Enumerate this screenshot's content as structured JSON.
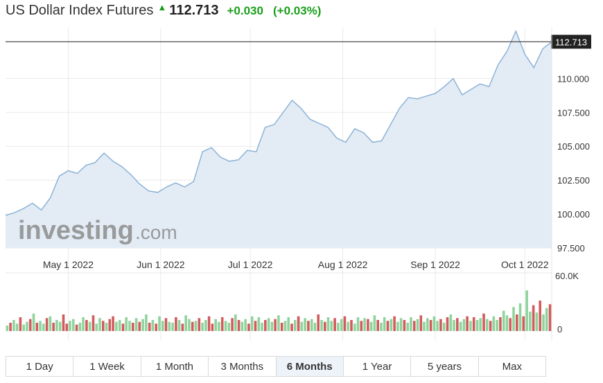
{
  "header": {
    "title": "US Dollar Index Futures",
    "price": "112.713",
    "change": "+0.030",
    "change_pct": "(+0.03%)",
    "arrow_icon": "up-arrow-icon"
  },
  "watermark": {
    "brand": "investing",
    "suffix": ".com"
  },
  "range_buttons": [
    {
      "label": "1 Day"
    },
    {
      "label": "1 Week"
    },
    {
      "label": "1 Month"
    },
    {
      "label": "3 Months"
    },
    {
      "label": "6 Months",
      "active": true
    },
    {
      "label": "1 Year"
    },
    {
      "label": "5 years"
    },
    {
      "label": "Max"
    }
  ],
  "colors": {
    "line": "#8cb2d6",
    "area": "#e3ecf5",
    "up_bar": "#90d39c",
    "down_bar": "#d15c5c",
    "price_line": "#222222",
    "price_tag": "#222222",
    "grid": "#e9e9e9"
  },
  "chart_data": [
    {
      "type": "area",
      "title": "",
      "xlabel": "",
      "ylabel": "",
      "ylim": [
        97.5,
        113.75
      ],
      "y_ticks": [
        "97.500",
        "100.000",
        "102.500",
        "105.000",
        "107.500",
        "110.000"
      ],
      "x_ticks": [
        {
          "label": "May 1 2022",
          "date": "2022-05-01"
        },
        {
          "label": "Jun 1 2022",
          "date": "2022-06-01"
        },
        {
          "label": "Jul 1 2022",
          "date": "2022-07-01"
        },
        {
          "label": "Aug 1 2022",
          "date": "2022-08-01"
        },
        {
          "label": "Sep 1 2022",
          "date": "2022-09-01"
        },
        {
          "label": "Oct 1 2022",
          "date": "2022-10-01"
        }
      ],
      "grid": true,
      "last_price_label": "112.713",
      "last_price": 112.713,
      "series": [
        {
          "points": [
            [
              "2022-04-10",
              99.9
            ],
            [
              "2022-04-13",
              100.1
            ],
            [
              "2022-04-16",
              100.4
            ],
            [
              "2022-04-19",
              100.8
            ],
            [
              "2022-04-22",
              100.3
            ],
            [
              "2022-04-25",
              101.2
            ],
            [
              "2022-04-28",
              102.8
            ],
            [
              "2022-05-01",
              103.2
            ],
            [
              "2022-05-04",
              103.0
            ],
            [
              "2022-05-07",
              103.6
            ],
            [
              "2022-05-10",
              103.8
            ],
            [
              "2022-05-13",
              104.5
            ],
            [
              "2022-05-16",
              103.9
            ],
            [
              "2022-05-19",
              103.5
            ],
            [
              "2022-05-22",
              102.9
            ],
            [
              "2022-05-25",
              102.2
            ],
            [
              "2022-05-28",
              101.7
            ],
            [
              "2022-05-31",
              101.6
            ],
            [
              "2022-06-03",
              102.0
            ],
            [
              "2022-06-06",
              102.3
            ],
            [
              "2022-06-09",
              102.0
            ],
            [
              "2022-06-12",
              102.4
            ],
            [
              "2022-06-15",
              104.6
            ],
            [
              "2022-06-18",
              104.9
            ],
            [
              "2022-06-21",
              104.2
            ],
            [
              "2022-06-24",
              103.9
            ],
            [
              "2022-06-27",
              104.0
            ],
            [
              "2022-06-30",
              104.7
            ],
            [
              "2022-07-03",
              104.6
            ],
            [
              "2022-07-06",
              106.4
            ],
            [
              "2022-07-09",
              106.6
            ],
            [
              "2022-07-12",
              107.5
            ],
            [
              "2022-07-15",
              108.4
            ],
            [
              "2022-07-18",
              107.8
            ],
            [
              "2022-07-21",
              107.0
            ],
            [
              "2022-07-24",
              106.7
            ],
            [
              "2022-07-27",
              106.4
            ],
            [
              "2022-07-30",
              105.6
            ],
            [
              "2022-08-02",
              105.3
            ],
            [
              "2022-08-05",
              106.3
            ],
            [
              "2022-08-08",
              106.0
            ],
            [
              "2022-08-11",
              105.3
            ],
            [
              "2022-08-14",
              105.4
            ],
            [
              "2022-08-17",
              106.6
            ],
            [
              "2022-08-20",
              107.8
            ],
            [
              "2022-08-23",
              108.6
            ],
            [
              "2022-08-26",
              108.5
            ],
            [
              "2022-08-29",
              108.7
            ],
            [
              "2022-09-01",
              108.9
            ],
            [
              "2022-09-04",
              109.4
            ],
            [
              "2022-09-07",
              110.0
            ],
            [
              "2022-09-10",
              108.8
            ],
            [
              "2022-09-13",
              109.2
            ],
            [
              "2022-09-16",
              109.6
            ],
            [
              "2022-09-19",
              109.4
            ],
            [
              "2022-09-22",
              111.0
            ],
            [
              "2022-09-25",
              112.0
            ],
            [
              "2022-09-28",
              113.5
            ],
            [
              "2022-10-01",
              111.8
            ],
            [
              "2022-10-04",
              110.8
            ],
            [
              "2022-10-07",
              112.2
            ],
            [
              "2022-10-10",
              112.7
            ]
          ]
        }
      ]
    },
    {
      "type": "bar",
      "title": "",
      "ylim": [
        0,
        60000
      ],
      "y_ticks": [
        "0",
        "60.0K"
      ],
      "series": [
        {
          "name": "",
          "volumes_k": [
            6,
            9,
            12,
            8,
            15,
            7,
            10,
            13,
            19,
            9,
            11,
            8,
            14,
            16,
            9,
            12,
            10,
            18,
            8,
            11,
            13,
            7,
            9,
            15,
            12,
            10,
            17,
            8,
            14,
            11,
            9,
            13,
            16,
            10,
            12,
            8,
            15,
            11,
            9,
            14,
            10,
            13,
            18,
            9,
            12,
            8,
            16,
            11,
            14,
            10,
            9,
            15,
            12,
            8,
            17,
            13,
            10,
            11,
            14,
            9,
            12,
            16,
            8,
            13,
            10,
            15,
            11,
            9,
            14,
            18,
            12,
            10,
            13,
            8,
            16,
            11,
            15,
            9,
            12,
            14,
            10,
            13,
            17,
            9,
            11,
            15,
            8,
            12,
            16,
            10,
            14,
            11,
            13,
            9,
            18,
            12,
            10,
            15,
            11,
            14,
            9,
            13,
            16,
            10,
            12,
            8,
            15,
            11,
            14,
            13,
            10,
            17,
            12,
            9,
            15,
            11,
            13,
            16,
            10,
            14,
            12,
            9,
            15,
            11,
            13,
            17,
            10,
            14,
            12,
            16,
            11,
            13,
            9,
            15,
            18,
            12,
            14,
            10,
            13,
            16,
            11,
            15,
            12,
            14,
            19,
            13,
            11,
            16,
            12,
            15,
            22,
            17,
            14,
            26,
            18,
            30,
            16,
            44,
            21,
            28,
            20,
            33,
            18,
            25,
            29
          ]
        }
      ],
      "direction_pattern": [
        1,
        0,
        1,
        1,
        0,
        1,
        1,
        0,
        1,
        0,
        1,
        1,
        0,
        1,
        0,
        1,
        1,
        0,
        0,
        1,
        1,
        0,
        1,
        1,
        0,
        1,
        0,
        1,
        1,
        0,
        1,
        0,
        0,
        1,
        1,
        0,
        1,
        1,
        0,
        1,
        0,
        1,
        1,
        0,
        1,
        0,
        1,
        1,
        0,
        1,
        1,
        0,
        1,
        0,
        1,
        1,
        0,
        1,
        0,
        1,
        1,
        0,
        0,
        1,
        1,
        0,
        1,
        1,
        0,
        1,
        0,
        1,
        1,
        0,
        1,
        0,
        1,
        1,
        0,
        1,
        1,
        0,
        1,
        0,
        1,
        1,
        0,
        1,
        0,
        1,
        1,
        0,
        1,
        1,
        0,
        1,
        0,
        1,
        1,
        0,
        1,
        1,
        0,
        1,
        0,
        1,
        1,
        0,
        1,
        0,
        1,
        1,
        0,
        1,
        1,
        0,
        1,
        0,
        1,
        1,
        0,
        1,
        1,
        0,
        1,
        0,
        1,
        1,
        0,
        1,
        1,
        0,
        1,
        0,
        1,
        1,
        0,
        1,
        1,
        0,
        1,
        0,
        1,
        1,
        0,
        1,
        0,
        1,
        1,
        0,
        1,
        1,
        0,
        1,
        0,
        1,
        0,
        1,
        1,
        0,
        1,
        0,
        1,
        1,
        0
      ]
    }
  ]
}
